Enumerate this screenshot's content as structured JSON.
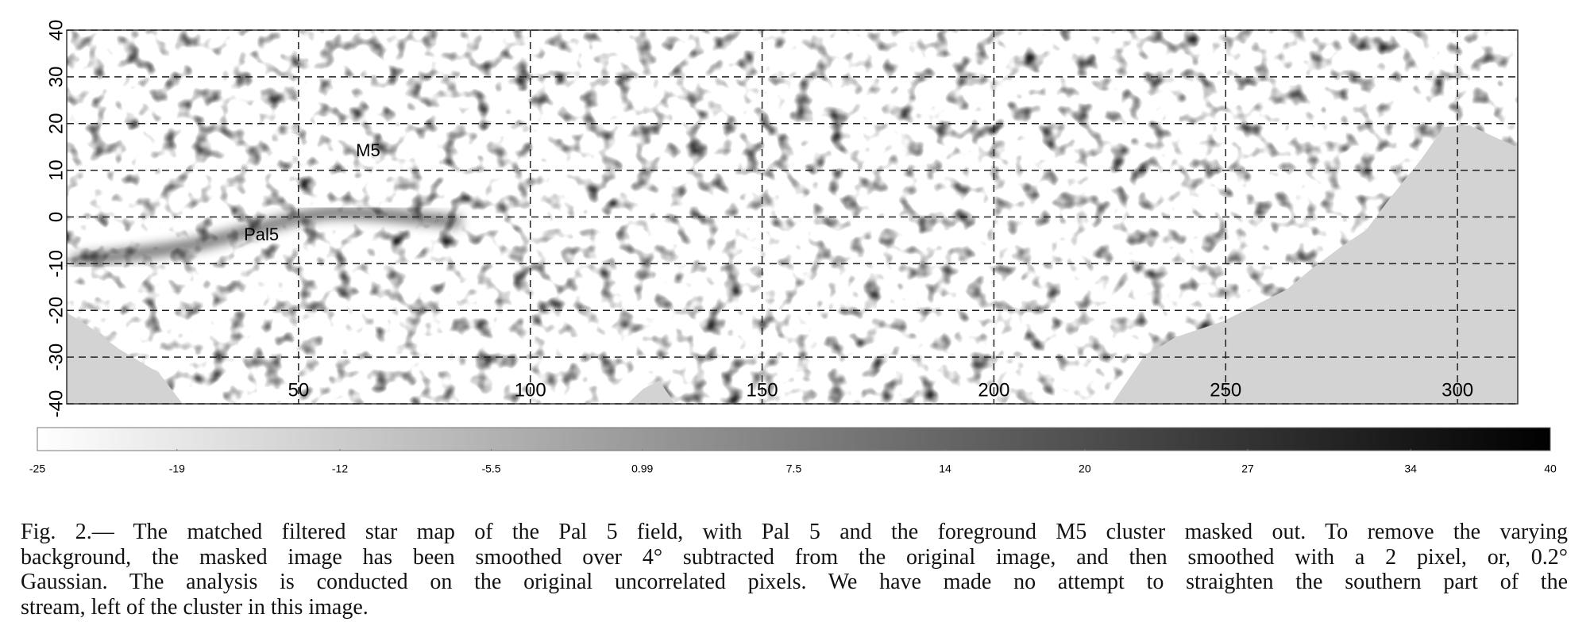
{
  "chart_data": {
    "type": "heatmap",
    "xlim": [
      0,
      313
    ],
    "ylim": [
      -40,
      40
    ],
    "xticks": [
      50,
      100,
      150,
      200,
      250,
      300
    ],
    "yticks": [
      40,
      30,
      20,
      10,
      0,
      -10,
      -20,
      -30,
      -40
    ],
    "grid": true,
    "annotations": [
      {
        "text": "M5",
        "x": 65,
        "y": 14
      },
      {
        "text": "Pal5",
        "x": 42,
        "y": -4
      }
    ],
    "colorbar": {
      "lim": [
        -25,
        40
      ],
      "ticks": [
        -25,
        -19,
        -12,
        -5.5,
        0.99,
        7.5,
        14,
        20,
        27,
        34,
        40
      ],
      "colors": [
        "#ffffff",
        "#000000"
      ]
    }
  },
  "caption": {
    "lines": [
      "Fig. 2.— The matched filtered star map of the Pal 5 field, with Pal 5 and the foreground M5 cluster masked out. To remove the varying",
      "background, the masked image has been smoothed over 4°  subtracted from the original image, and then smoothed with a 2 pixel, or, 0.2°",
      "Gaussian. The analysis is conducted on the original uncorrelated pixels. We have made no attempt to straighten the southern part of the",
      "stream, left of the cluster in this image."
    ]
  }
}
